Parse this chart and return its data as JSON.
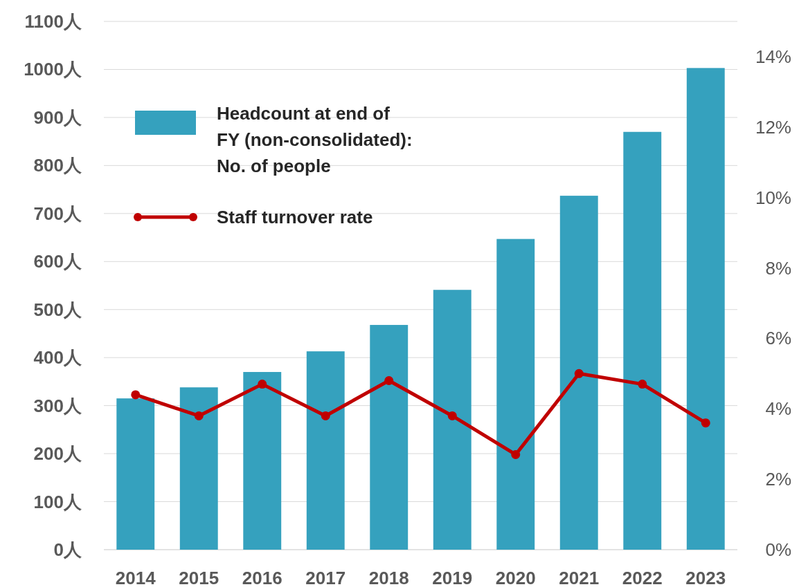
{
  "chart_data": {
    "type": "bar",
    "categories": [
      "2014",
      "2015",
      "2016",
      "2017",
      "2018",
      "2019",
      "2020",
      "2021",
      "2022",
      "2023"
    ],
    "series": [
      {
        "name": "Headcount at end of FY (non-consolidated): No. of people",
        "color": "#35a1be",
        "values": [
          315,
          338,
          370,
          413,
          468,
          541,
          647,
          737,
          870,
          1003
        ]
      },
      {
        "name": "Staff turnover rate",
        "type": "line",
        "axis": "y2",
        "color": "#c00000",
        "marker": "circle",
        "values": [
          4.4,
          3.8,
          4.7,
          3.8,
          4.8,
          3.8,
          2.7,
          5.0,
          4.7,
          3.6
        ]
      }
    ],
    "ylim": [
      0,
      1100
    ],
    "yticks": [
      {
        "value": 0,
        "label": "0人"
      },
      {
        "value": 100,
        "label": "100人"
      },
      {
        "value": 200,
        "label": "200人"
      },
      {
        "value": 300,
        "label": "300人"
      },
      {
        "value": 400,
        "label": "400人"
      },
      {
        "value": 500,
        "label": "500人"
      },
      {
        "value": 600,
        "label": "600人"
      },
      {
        "value": 700,
        "label": "700人"
      },
      {
        "value": 800,
        "label": "800人"
      },
      {
        "value": 900,
        "label": "900人"
      },
      {
        "value": 1000,
        "label": "1000人"
      },
      {
        "value": 1100,
        "label": "1100人"
      }
    ],
    "y2lim": [
      0,
      15
    ],
    "y2ticks": [
      {
        "value": 0,
        "label": "0%"
      },
      {
        "value": 2,
        "label": "2%"
      },
      {
        "value": 4,
        "label": "4%"
      },
      {
        "value": 6,
        "label": "6%"
      },
      {
        "value": 8,
        "label": "8%"
      },
      {
        "value": 10,
        "label": "10%"
      },
      {
        "value": 12,
        "label": "12%"
      },
      {
        "value": 14,
        "label": "14%"
      }
    ],
    "grid": "y",
    "legend": "top left"
  }
}
